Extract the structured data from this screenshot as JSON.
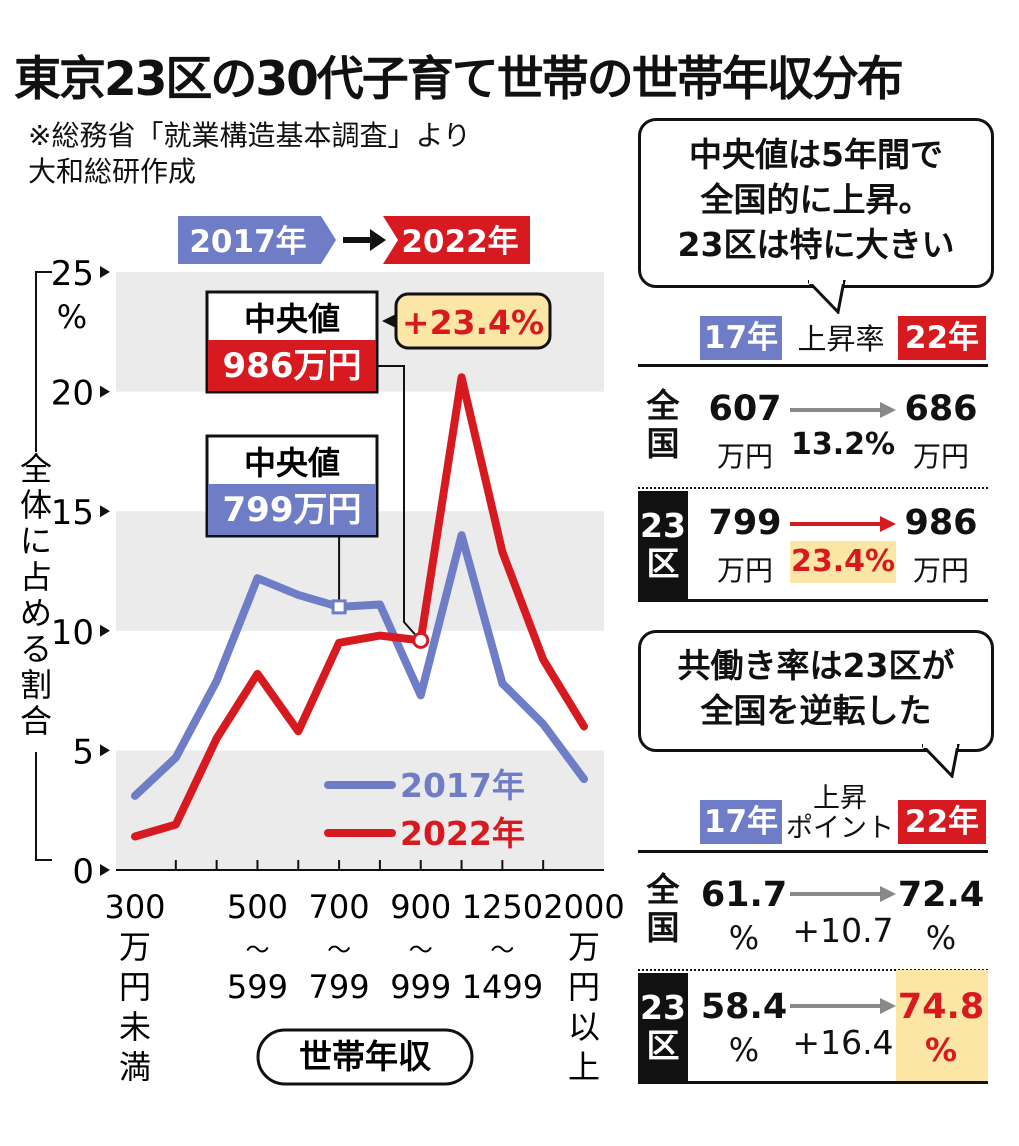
{
  "title": "東京23区の30代子育て世帯の世帯年収分布",
  "source": "※総務省「就業構造基本調査」より\n大和総研作成",
  "legend_tags": {
    "from": "2017年",
    "to": "2022年"
  },
  "colors": {
    "y2017": "#6f7dc7",
    "y2022": "#d71a1f",
    "band": "#ebebeb",
    "highlight": "#fbe6a6"
  },
  "chart_data": {
    "type": "line",
    "title": "東京23区の30代子育て世帯の世帯年収分布",
    "xlabel": "世帯年収",
    "ylabel": "全体に占める割合",
    "yunit": "%",
    "ylim": [
      0,
      25
    ],
    "yticks": [
      0,
      5,
      10,
      15,
      20,
      25
    ],
    "x_tick_labels": [
      "300\n万\n円\n未\n満",
      "500\n〜\n599",
      "700\n〜\n799",
      "900\n〜\n999",
      "1250\n〜\n1499",
      "2000\n万\n円\n以\n上"
    ],
    "x_tick_index": [
      0,
      3,
      5,
      7,
      9,
      11
    ],
    "categories_count": 12,
    "grid": "alternating bands",
    "legend_position": "bottom-right",
    "series": [
      {
        "name": "2017年",
        "values": [
          3.1,
          4.7,
          7.9,
          12.2,
          11.5,
          11.0,
          11.1,
          7.3,
          14.0,
          7.8,
          6.1,
          3.8
        ]
      },
      {
        "name": "2022年",
        "values": [
          1.4,
          1.9,
          5.5,
          8.2,
          5.8,
          9.5,
          9.8,
          9.6,
          20.6,
          13.3,
          8.8,
          6.0
        ]
      }
    ],
    "annotations": [
      {
        "label": "中央値",
        "value": "799万円",
        "series": "2017年"
      },
      {
        "label": "中央値",
        "value": "986万円",
        "series": "2022年",
        "change": "+23.4%"
      }
    ]
  },
  "bubble1": {
    "text": "中央値は5年間で\n全国的に上昇。\n23区は特に大きい"
  },
  "table1": {
    "head": {
      "left": "17年",
      "mid": "上昇率",
      "right": "22年"
    },
    "rows": [
      {
        "name": "全\n国",
        "from": "607",
        "from_unit": "万円",
        "rate": "13.2%",
        "to": "686",
        "to_unit": "万円"
      },
      {
        "name": "23\n区",
        "from": "799",
        "from_unit": "万円",
        "rate": "23.4%",
        "to": "986",
        "to_unit": "万円"
      }
    ]
  },
  "bubble2": {
    "text": "共働き率は23区が\n全国を逆転した"
  },
  "table2": {
    "head": {
      "left": "17年",
      "mid": "上昇\nポイント",
      "right": "22年"
    },
    "rows": [
      {
        "name": "全\n国",
        "from": "61.7",
        "from_unit": "%",
        "rate": "+10.7",
        "to": "72.4",
        "to_unit": "%"
      },
      {
        "name": "23\n区",
        "from": "58.4",
        "from_unit": "%",
        "rate": "+16.4",
        "to": "74.8",
        "to_unit": "%"
      }
    ]
  }
}
